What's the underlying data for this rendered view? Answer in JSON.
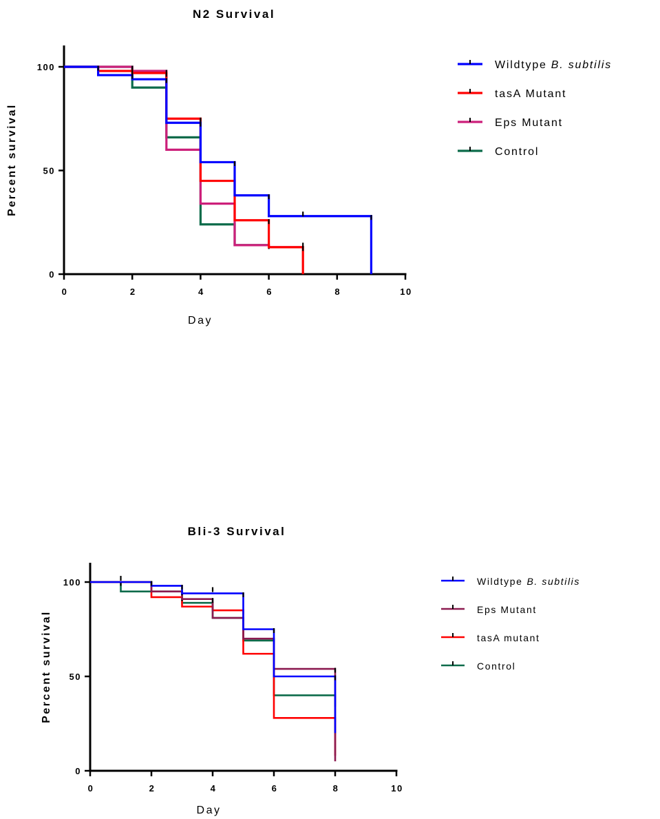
{
  "chart_data": [
    {
      "type": "line",
      "title": "N2 Survival",
      "xlabel": "Day",
      "ylabel": "Percent survival",
      "xlim": [
        0,
        10
      ],
      "ylim": [
        0,
        110
      ],
      "xticks": [
        "0",
        "2",
        "4",
        "6",
        "8",
        "10"
      ],
      "yticks": [
        "0",
        "50",
        "100"
      ],
      "legend_position": "right",
      "series": [
        {
          "name": "Wildtype",
          "name_italic": "B. subtilis",
          "color": "#0000ff",
          "steps": [
            [
              0,
              100
            ],
            [
              1,
              96
            ],
            [
              2,
              94
            ],
            [
              3,
              73
            ],
            [
              4,
              54
            ],
            [
              5,
              38
            ],
            [
              6,
              28
            ],
            [
              9,
              0
            ]
          ],
          "censor": [
            [
              7,
              29
            ]
          ]
        },
        {
          "name": "tasA Mutant",
          "color": "#ff0000",
          "steps": [
            [
              0,
              100
            ],
            [
              1,
              98
            ],
            [
              2,
              97
            ],
            [
              3,
              75
            ],
            [
              4,
              45
            ],
            [
              5,
              26
            ],
            [
              6,
              13
            ],
            [
              7,
              0
            ]
          ],
          "censor": [
            [
              7,
              14
            ]
          ]
        },
        {
          "name": "Eps Mutant",
          "color": "#cc1f7a",
          "steps": [
            [
              0,
              100
            ],
            [
              2,
              98
            ],
            [
              3,
              60
            ],
            [
              4,
              34
            ],
            [
              5,
              14
            ],
            [
              6,
              13
            ],
            [
              7,
              13
            ]
          ],
          "censor": []
        },
        {
          "name": "Control",
          "color": "#0c6b4a",
          "steps": [
            [
              0,
              100
            ],
            [
              2,
              90
            ],
            [
              3,
              66
            ],
            [
              4,
              24
            ],
            [
              5,
              14
            ],
            [
              6,
              14
            ]
          ],
          "censor": []
        }
      ]
    },
    {
      "type": "line",
      "title": "Bli-3 Survival",
      "xlabel": "Day",
      "ylabel": "Percent survival",
      "xlim": [
        0,
        10
      ],
      "ylim": [
        0,
        110
      ],
      "xticks": [
        "0",
        "2",
        "4",
        "6",
        "8",
        "10"
      ],
      "yticks": [
        "0",
        "50",
        "100"
      ],
      "legend_position": "right",
      "series": [
        {
          "name": "Wildtype",
          "name_italic": "B. subtilis",
          "color": "#0000ff",
          "steps": [
            [
              0,
              100
            ],
            [
              2,
              98
            ],
            [
              3,
              94
            ],
            [
              5,
              75
            ],
            [
              6,
              50
            ],
            [
              8,
              20
            ]
          ],
          "censor": [
            [
              1,
              102
            ],
            [
              4,
              96
            ]
          ]
        },
        {
          "name": "Eps Mutant",
          "color": "#8b1a50",
          "steps": [
            [
              0,
              100
            ],
            [
              2,
              95
            ],
            [
              3,
              91
            ],
            [
              4,
              81
            ],
            [
              5,
              70
            ],
            [
              6,
              54
            ],
            [
              8,
              5
            ]
          ],
          "censor": []
        },
        {
          "name": "tasA mutant",
          "color": "#ff0000",
          "steps": [
            [
              0,
              100
            ],
            [
              2,
              92
            ],
            [
              3,
              87
            ],
            [
              4,
              85
            ],
            [
              5,
              62
            ],
            [
              6,
              28
            ],
            [
              8,
              8
            ]
          ],
          "censor": []
        },
        {
          "name": "Control",
          "color": "#0c6b4a",
          "steps": [
            [
              0,
              100
            ],
            [
              1,
              95
            ],
            [
              3,
              89
            ],
            [
              4,
              81
            ],
            [
              5,
              69
            ],
            [
              6,
              40
            ],
            [
              8,
              34
            ]
          ],
          "censor": []
        }
      ]
    }
  ]
}
